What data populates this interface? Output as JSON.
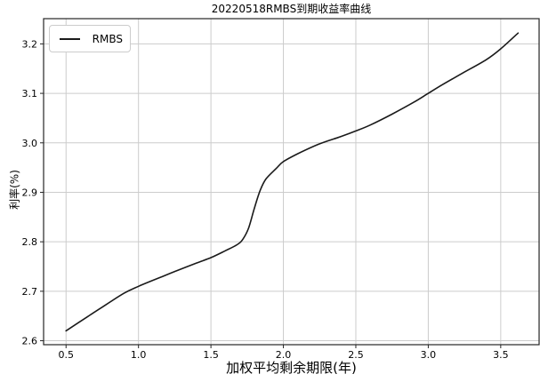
{
  "chart_data": {
    "type": "line",
    "title": "20220518RMBS到期收益率曲线",
    "xlabel": "加权平均剩余期限(年)",
    "ylabel": "利率(%)",
    "xlim": [
      0.345,
      3.765
    ],
    "ylim": [
      2.592,
      3.251
    ],
    "xticks": [
      0.5,
      1.0,
      1.5,
      2.0,
      2.5,
      3.0,
      3.5
    ],
    "yticks": [
      2.6,
      2.7,
      2.8,
      2.9,
      3.0,
      3.1,
      3.2
    ],
    "grid": true,
    "legend_position": "upper-left",
    "series": [
      {
        "name": "RMBS",
        "color": "#1a1a1a",
        "line_width": 1.6,
        "x": [
          0.5,
          0.65,
          0.75,
          0.9,
          1.0,
          1.15,
          1.25,
          1.4,
          1.5,
          1.6,
          1.68,
          1.72,
          1.76,
          1.8,
          1.84,
          1.88,
          1.95,
          2.0,
          2.1,
          2.25,
          2.4,
          2.5,
          2.6,
          2.75,
          2.9,
          3.0,
          3.1,
          3.25,
          3.4,
          3.5,
          3.62
        ],
        "y": [
          2.62,
          2.649,
          2.668,
          2.696,
          2.71,
          2.728,
          2.74,
          2.757,
          2.768,
          2.782,
          2.794,
          2.805,
          2.828,
          2.868,
          2.904,
          2.927,
          2.948,
          2.962,
          2.978,
          2.998,
          3.013,
          3.024,
          3.036,
          3.058,
          3.082,
          3.1,
          3.118,
          3.143,
          3.168,
          3.19,
          3.222
        ]
      }
    ],
    "colors": {
      "background": "#ffffff",
      "grid": "#cccccc",
      "spine": "#262626",
      "tick_text": "#000000"
    }
  }
}
